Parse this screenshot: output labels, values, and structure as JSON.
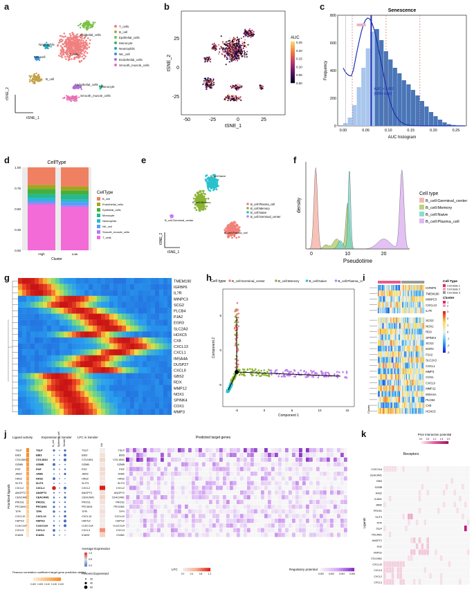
{
  "labels": {
    "a": "a",
    "b": "b",
    "c": "c",
    "d": "d",
    "e": "e",
    "f": "f",
    "g": "g",
    "h": "h",
    "i": "i",
    "j": "j",
    "k": "k"
  },
  "panel_a": {
    "legend": [
      "T_cells",
      "B_cell",
      "Epithelial_cells",
      "Monocyte",
      "Neutrophils",
      "NK_cell",
      "Endothelial_cells",
      "Smooth_muscle_cells"
    ],
    "colors": [
      "#f08080",
      "#c2a14a",
      "#7ac143",
      "#2fb37e",
      "#25a6b8",
      "#3b8fd9",
      "#b06ad9",
      "#e66fb4"
    ],
    "cluster_labels": [
      "T_cells",
      "Epithelial_cells",
      "Neutrophils",
      "NK_cell",
      "B_cell",
      "Endothelial_cells",
      "Smooth_muscle_cells",
      "Monocyte"
    ],
    "xlabel": "tSNE_1",
    "ylabel": "tSNE_2"
  },
  "panel_b": {
    "xticks": [
      "-50",
      "-25",
      "0",
      "25"
    ],
    "yticks": [
      "25",
      "0",
      "-25"
    ],
    "xlabel": "tSNE_1",
    "ylabel": "tSNE_2",
    "legend_title": "AUC",
    "legend_ticks": [
      "0.25",
      "0.20",
      "0.15",
      "0.10",
      "0.05",
      "0.00"
    ]
  },
  "chart_data": [
    {
      "type": "bar",
      "title": "Senescence",
      "xlabel": "AUC histogram",
      "ylabel": "Frequency",
      "categories": [
        "0.00",
        "0.05",
        "0.10",
        "0.15",
        "0.20",
        "0.25"
      ],
      "xticks": [
        "0.00",
        "0.05",
        "0.10",
        "0.15",
        "0.20",
        "0.25"
      ],
      "yticks": [
        "0",
        "200",
        "400",
        "600",
        "800"
      ],
      "threshold_label": "AUC > 0.062",
      "threshold_sub": "(6896 cells)",
      "threshold": 0.062,
      "hist": [
        20,
        60,
        150,
        280,
        420,
        560,
        680,
        700,
        620,
        540,
        480,
        420,
        380,
        330,
        300,
        260,
        220,
        180,
        140,
        100,
        70,
        45,
        25,
        12,
        6,
        3,
        1
      ],
      "ylim": [
        0,
        800
      ]
    },
    {
      "type": "bar",
      "title": "CellType",
      "xlabel": "Cluster",
      "ylabel": "",
      "categories": [
        "High",
        "Low"
      ],
      "yticks": [
        "1.00",
        "0.75",
        "0.50",
        "0.25",
        "0.00"
      ],
      "legend_title": "CellType",
      "series": [
        {
          "name": "T_cells",
          "color": "#f26bd7",
          "values": [
            0.55,
            0.52
          ]
        },
        {
          "name": "Smooth_muscle_cells",
          "color": "#b978f0",
          "values": [
            0.02,
            0.02
          ]
        },
        {
          "name": "NK_cell",
          "color": "#5a9ef5",
          "values": [
            0.03,
            0.04
          ]
        },
        {
          "name": "Neutrophils",
          "color": "#2bb7d6",
          "values": [
            0.03,
            0.03
          ]
        },
        {
          "name": "Monocyte",
          "color": "#27b890",
          "values": [
            0.05,
            0.06
          ]
        },
        {
          "name": "Epithelial_cells",
          "color": "#43b03d",
          "values": [
            0.06,
            0.05
          ]
        },
        {
          "name": "Endothelial_cells",
          "color": "#a3a520",
          "values": [
            0.05,
            0.05
          ]
        },
        {
          "name": "B_cell",
          "color": "#f08062",
          "values": [
            0.21,
            0.23
          ]
        }
      ]
    },
    {
      "type": "area",
      "xlabel": "Pseudotime",
      "ylabel": "density",
      "xticks": [
        "0",
        "10",
        "20"
      ],
      "legend_title": "Cell type",
      "series": [
        {
          "name": "B_cell:Germinal_center",
          "color": "#f4a69a"
        },
        {
          "name": "B_cell:Memory",
          "color": "#a6c95a"
        },
        {
          "name": "B_cell:Naive",
          "color": "#6fd3c8"
        },
        {
          "name": "B_cell:Plasma_cell",
          "color": "#d7a7f0"
        }
      ]
    }
  ],
  "panel_e": {
    "legend": [
      "B_cell:Plasma_cell",
      "B_cell:Memory",
      "B_cell:Naive",
      "B_cell:Germinal_center"
    ],
    "colors": [
      "#f08078",
      "#8bb335",
      "#28c1cc",
      "#c27ff0"
    ],
    "cluster_labels": [
      "B_cell:Naive",
      "B_cell:Memory",
      "B_cell:Germinal_center",
      "B_cell:Plasma_cell"
    ],
    "xlabel": "tSNE_1",
    "ylabel": "tSNE_2"
  },
  "panel_g": {
    "genes": [
      "TMEM190",
      "IGFBP6",
      "IL7R",
      "MINPC3",
      "SCG2",
      "PLCB4",
      "PJA2",
      "EGR3",
      "SLC2A3",
      "HOXC5",
      "CX8",
      "CXCL13",
      "CXCL1",
      "IMSA4A",
      "DUSP27",
      "CXCL9",
      "GBS2",
      "RDX",
      "MMP12",
      "NOX1",
      "SPINK4",
      "COX1",
      "MMP3"
    ]
  },
  "panel_h": {
    "legend_title": "Cell type",
    "legend": [
      "B_cell:Germinal_center",
      "B_cell:Memory",
      "B_cell:Naive",
      "B_cell:Plasma_cell"
    ],
    "colors": [
      "#f08078",
      "#8bb335",
      "#28c1cc",
      "#c27ff0"
    ],
    "xlabel": "Component 1",
    "ylabel": "Component 2",
    "xticks": [
      "-5",
      "0",
      "5",
      "10",
      "15"
    ],
    "yticks": [
      "5",
      "0",
      "-5"
    ]
  },
  "panel_i": {
    "genes_top": [
      "IGFBP6",
      "TMEM190",
      "MINPC3",
      "CXCL13",
      "IL7R"
    ],
    "genes_bottom": [
      "SCG2",
      "NOX1",
      "RDX",
      "SPINK4",
      "SCG2",
      "EGR3",
      "PJA2",
      "SLC2A3",
      "CXCL1",
      "MMP3",
      "COX1",
      "CXCL9",
      "MMP12",
      "IMSA4A",
      "PLCB4",
      "CX8",
      "HOXC5"
    ],
    "legend_title1": "Cell Type",
    "legend1": [
      "Cell state 1",
      "Cell state 2",
      "Cell state 3"
    ],
    "legend_title2": "Cluster",
    "legend2": [
      "1",
      "2"
    ],
    "scale": [
      "3",
      "2",
      "1",
      "0",
      "-1",
      "-2",
      "-3"
    ],
    "cluster_label": "Cluster"
  },
  "panel_j": {
    "header1": "Ligand activity",
    "header2": "Expression in Sender",
    "header3": "LFC in Sender",
    "header4": "Predicted target genes",
    "ylabel": "Prioritized ligands",
    "ligands": [
      "TSLP",
      "EBI3",
      "COL18A1",
      "GZMB",
      "PGF",
      "JAM2",
      "HAS2",
      "SLIT3",
      "CXCL2",
      "ANGPT2",
      "CEACAM1",
      "PROS1",
      "PECAM1",
      "TFPI",
      "CXCL10",
      "HSPG2",
      "CLEC11A",
      "CXCL3",
      "ICAM1"
    ],
    "sender_cols": [
      "B_cell",
      "Epithelial_cells",
      "Sender"
    ],
    "lfc_col": "NA",
    "legend_pearson": "Pearson correlation coefficient target gene prediction ability)",
    "pearson_ticks": [
      "0.100",
      "0.105",
      "0.110",
      "0.115",
      "0.120"
    ],
    "legend_avg": "Average Expression",
    "avg_ticks": [
      "1.0",
      "0.5",
      "0.0"
    ],
    "legend_pct": "Percent Expressed",
    "pct_ticks": [
      "20",
      "40",
      "60"
    ],
    "legend_lfc": "LFC",
    "lfc_ticks": [
      "0.0",
      "0.4",
      "0.8",
      "1.2"
    ],
    "legend_reg": "Regulatory potential",
    "reg_ticks": [
      "0.000",
      "0.002",
      "0.004",
      "0.006"
    ]
  },
  "panel_k": {
    "title": "Receptors",
    "legend_title": "Prior interaction potential",
    "legend_ticks": [
      "0.0",
      "0.5",
      "1.0",
      "1.5",
      "2.0"
    ],
    "ylabel": "Ligands",
    "ligands": [
      "CLEC11A",
      "CEACAM1",
      "EBI3",
      "GZMB",
      "HAS2",
      "ICAM1",
      "JAM2",
      "PROS1",
      "SLIT3",
      "TFPI",
      "TSLP",
      "PECAM1",
      "ANGPT2",
      "PGF",
      "HSPG2",
      "COL18A1",
      "CXCL10",
      "CXCL9",
      "CXCL2",
      "CXCL3"
    ]
  }
}
